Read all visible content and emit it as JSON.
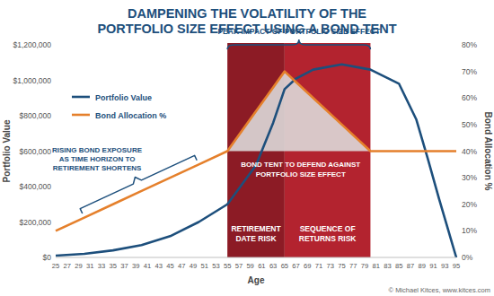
{
  "chart_data": {
    "type": "line",
    "title": "DAMPENING THE VOLATILITY OF THE PORTFOLIO SIZE EFFECT USING A BOND TENT",
    "x": [
      25,
      30,
      35,
      40,
      45,
      50,
      55,
      60,
      63,
      65,
      67,
      70,
      75,
      80,
      85,
      88,
      90,
      92,
      94,
      95
    ],
    "series": [
      {
        "name": "Portfolio Value",
        "color": "#1d4f7c",
        "values": [
          10000,
          20000,
          40000,
          70000,
          120000,
          200000,
          300000,
          520000,
          760000,
          950000,
          1010000,
          1060000,
          1090000,
          1060000,
          980000,
          780000,
          560000,
          330000,
          110000,
          0
        ]
      },
      {
        "name": "Bond Allocation %",
        "color": "#e5802c",
        "axis": "y2",
        "values": [
          10,
          15,
          20,
          25,
          30,
          35,
          40,
          55,
          64,
          70,
          66,
          60,
          50,
          40,
          40,
          40,
          40,
          40,
          40,
          40
        ]
      }
    ],
    "xlim": [
      25,
      95
    ],
    "xticks": [
      25,
      27,
      29,
      31,
      33,
      35,
      37,
      39,
      41,
      43,
      45,
      47,
      49,
      51,
      53,
      55,
      57,
      59,
      61,
      63,
      65,
      67,
      69,
      71,
      73,
      75,
      77,
      79,
      81,
      83,
      85,
      87,
      89,
      91,
      93,
      95
    ],
    "ylim": [
      0,
      1200000
    ],
    "yticks": [
      {
        "value": 0,
        "label": "$0"
      },
      {
        "value": 200000,
        "label": "$200,000"
      },
      {
        "value": 400000,
        "label": "$400,000"
      },
      {
        "value": 600000,
        "label": "$600,000"
      },
      {
        "value": 800000,
        "label": "$800,000"
      },
      {
        "value": 1000000,
        "label": "$1,000,000"
      },
      {
        "value": 1200000,
        "label": "$1,200,000"
      }
    ],
    "y2lim": [
      0,
      80
    ],
    "y2ticks": [
      {
        "value": 0,
        "label": "0%"
      },
      {
        "value": 10,
        "label": "10%"
      },
      {
        "value": 20,
        "label": "20%"
      },
      {
        "value": 30,
        "label": "30%"
      },
      {
        "value": 40,
        "label": "40%"
      },
      {
        "value": 50,
        "label": "50%"
      },
      {
        "value": 60,
        "label": "60%"
      },
      {
        "value": 70,
        "label": "70%"
      },
      {
        "value": 80,
        "label": "80%"
      }
    ],
    "xlabel": "Age",
    "ylabel": "Portfolio Value",
    "y2label": "Bond Allocation %",
    "legend": "upper left",
    "grid": false,
    "regions": [
      {
        "label": "RETIREMENT DATE RISK",
        "range": [
          55,
          65
        ],
        "color": "#8c1b25"
      },
      {
        "label": "SEQUENCE OF RETURNS RISK",
        "range": [
          65,
          80
        ],
        "color": "#b3232f"
      }
    ],
    "annotations": [
      "PEAK IMPACT OF PORTFOLIO SIZE EFFECT",
      "RISING BOND EXPOSURE AS TIME HORIZON TO RETIREMENT SHORTENS",
      "BOND TENT TO DEFEND AGAINST PORTFOLIO SIZE EFFECT"
    ],
    "source": "© Michael Kitces, www.kitces.com"
  }
}
